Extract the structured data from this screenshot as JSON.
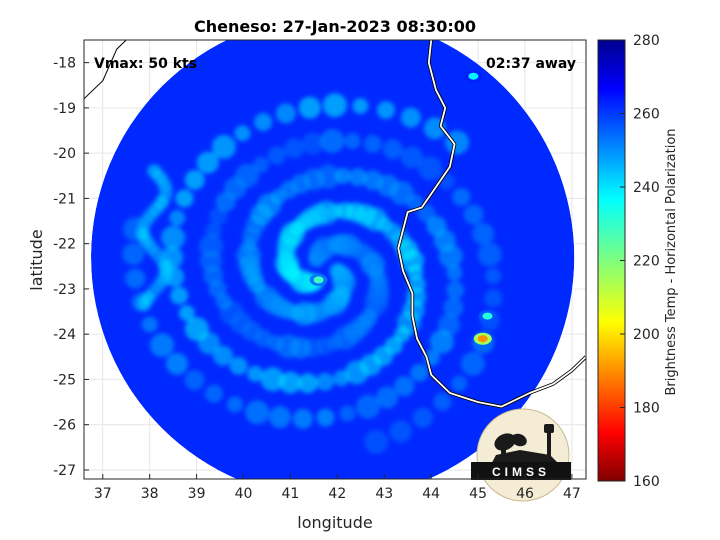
{
  "chart_data": {
    "type": "heatmap",
    "title": "Cheneso: 27-Jan-2023 08:30:00",
    "xlabel": "longitude",
    "ylabel": "latitude",
    "xlim": [
      36.6,
      47.3
    ],
    "ylim": [
      -27.2,
      -17.5
    ],
    "xticks": [
      37,
      38,
      39,
      40,
      41,
      42,
      43,
      44,
      45,
      46,
      47
    ],
    "yticks": [
      -18,
      -19,
      -20,
      -21,
      -22,
      -23,
      -24,
      -25,
      -26,
      -27
    ],
    "grid": true,
    "annotations": {
      "left": "Vmax: 50 kts",
      "right": "02:37 away"
    },
    "colorbar": {
      "label": "Brightness Temp - Horizontal Polarization",
      "range": [
        160,
        280
      ],
      "ticks": [
        280,
        260,
        240,
        220,
        200,
        180,
        160
      ],
      "colormap": "jet"
    },
    "swath": {
      "center_lon": 41.9,
      "center_lat": -22.3,
      "radius_deg": 5.15
    },
    "storm_center": {
      "lon": 41.7,
      "lat": -22.6
    },
    "background_bt": 262,
    "features": [
      {
        "name": "eye-region",
        "lon": 41.6,
        "lat": -22.8,
        "bt": 228
      },
      {
        "name": "coastal-cold-spot",
        "lon": 45.1,
        "lat": -24.1,
        "bt": 190
      },
      {
        "name": "cold-spot-2",
        "lon": 45.2,
        "lat": -23.6,
        "bt": 232
      },
      {
        "name": "cold-spot-3",
        "lon": 44.9,
        "lat": -18.3,
        "bt": 238
      }
    ],
    "coastline": [
      [
        44.0,
        -17.5
      ],
      [
        43.95,
        -18.0
      ],
      [
        44.1,
        -18.6
      ],
      [
        44.3,
        -19.0
      ],
      [
        44.2,
        -19.4
      ],
      [
        44.5,
        -19.8
      ],
      [
        44.4,
        -20.3
      ],
      [
        44.0,
        -20.9
      ],
      [
        43.8,
        -21.2
      ],
      [
        43.5,
        -21.3
      ],
      [
        43.4,
        -21.7
      ],
      [
        43.3,
        -22.1
      ],
      [
        43.4,
        -22.6
      ],
      [
        43.6,
        -23.1
      ],
      [
        43.6,
        -23.6
      ],
      [
        43.7,
        -24.1
      ],
      [
        43.9,
        -24.5
      ],
      [
        44.0,
        -24.9
      ],
      [
        44.4,
        -25.3
      ],
      [
        45.0,
        -25.5
      ],
      [
        45.5,
        -25.6
      ],
      [
        46.1,
        -25.3
      ],
      [
        46.6,
        -25.1
      ],
      [
        47.0,
        -24.8
      ],
      [
        47.3,
        -24.5
      ]
    ],
    "mainland_coast": [
      [
        36.6,
        -18.8
      ],
      [
        37.0,
        -18.4
      ],
      [
        37.3,
        -17.7
      ],
      [
        37.5,
        -17.5
      ]
    ],
    "logo_text": "CIMSS"
  }
}
